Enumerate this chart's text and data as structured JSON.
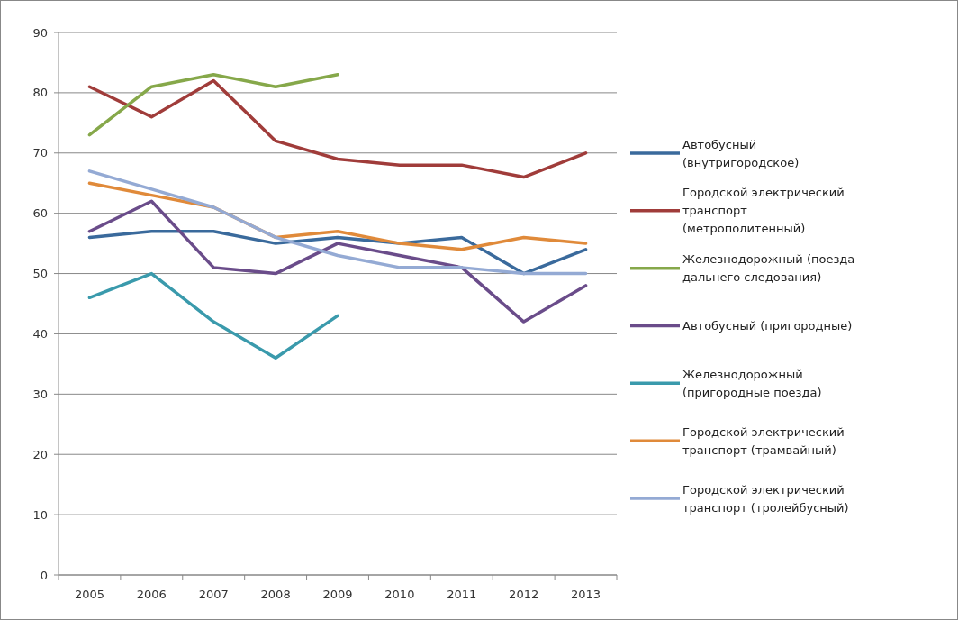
{
  "chart_data": {
    "type": "line",
    "categories": [
      "2005",
      "2006",
      "2007",
      "2008",
      "2009",
      "2010",
      "2011",
      "2012",
      "2013"
    ],
    "ylim": [
      0,
      90
    ],
    "yticks": [
      0,
      10,
      20,
      30,
      40,
      50,
      60,
      70,
      80,
      90
    ],
    "grid": "y",
    "legend": "right",
    "marker": "none",
    "line_style": "solid",
    "series": [
      {
        "name": "Автобусный (внутригородское)",
        "color": "#3a6a9c",
        "values": [
          56,
          57,
          57,
          55,
          56,
          55,
          56,
          50,
          54
        ]
      },
      {
        "name": "Городской электрический транспорт (метрополитенный)",
        "color": "#a03c3a",
        "values": [
          81,
          76,
          82,
          72,
          69,
          68,
          68,
          66,
          70
        ]
      },
      {
        "name": "Железнодорожный (поезда дальнего следования)",
        "color": "#86a84a",
        "values": [
          73,
          81,
          83,
          81,
          83,
          null,
          null,
          null,
          null
        ]
      },
      {
        "name": "Автобусный (пригородные)",
        "color": "#6a4c8a",
        "values": [
          57,
          62,
          51,
          50,
          55,
          53,
          51,
          42,
          48
        ]
      },
      {
        "name": "Железнодорожный (пригородные поезда)",
        "color": "#3a9aac",
        "values": [
          46,
          50,
          42,
          36,
          43,
          null,
          null,
          null,
          null
        ]
      },
      {
        "name": "Городской электрический транспорт (трамвайный)",
        "color": "#e08a3a",
        "values": [
          65,
          63,
          61,
          56,
          57,
          55,
          54,
          56,
          55
        ]
      },
      {
        "name": "Городской электрический транспорт (тролейбусный)",
        "color": "#94aad4",
        "values": [
          67,
          64,
          61,
          56,
          53,
          51,
          51,
          50,
          50
        ]
      }
    ]
  }
}
